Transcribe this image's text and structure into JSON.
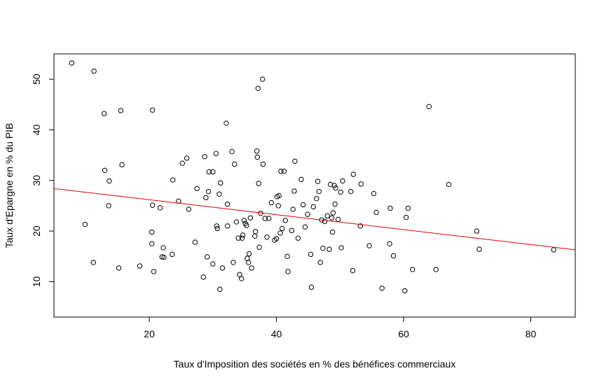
{
  "chart_data": {
    "type": "scatter",
    "xlabel": "Taux d'Imposition des sociétés en % des bénéfices commerciaux",
    "ylabel": "Taux d'Epargne en % du PIB",
    "xlim": [
      5,
      87
    ],
    "ylim": [
      3,
      55
    ],
    "x_ticks": [
      20,
      40,
      60,
      80
    ],
    "y_ticks": [
      10,
      20,
      30,
      40,
      50
    ],
    "x_tick_labels": [
      "20",
      "40",
      "60",
      "80"
    ],
    "y_tick_labels": [
      "10",
      "20",
      "30",
      "40",
      "50"
    ],
    "grid": false,
    "legend": "none",
    "point_color": "#000000",
    "line_color": "#e00000",
    "regression_line": {
      "x": [
        5,
        87
      ],
      "y": [
        28.4,
        16.3
      ]
    },
    "points": [
      [
        7.8,
        53.2
      ],
      [
        11.3,
        51.6
      ],
      [
        12.9,
        43.2
      ],
      [
        15.5,
        43.8
      ],
      [
        15.7,
        33.1
      ],
      [
        13.0,
        32.0
      ],
      [
        13.7,
        29.9
      ],
      [
        13.6,
        25.0
      ],
      [
        9.9,
        21.3
      ],
      [
        11.2,
        13.8
      ],
      [
        15.2,
        12.7
      ],
      [
        18.5,
        13.1
      ],
      [
        20.5,
        43.9
      ],
      [
        20.5,
        25.1
      ],
      [
        20.4,
        19.8
      ],
      [
        20.4,
        17.5
      ],
      [
        20.7,
        12.0
      ],
      [
        21.7,
        24.6
      ],
      [
        22.2,
        16.7
      ],
      [
        22.0,
        14.9
      ],
      [
        22.3,
        14.8
      ],
      [
        23.6,
        15.4
      ],
      [
        23.7,
        30.1
      ],
      [
        24.6,
        25.9
      ],
      [
        25.2,
        33.4
      ],
      [
        25.9,
        34.4
      ],
      [
        26.2,
        24.3
      ],
      [
        27.2,
        17.8
      ],
      [
        27.5,
        28.4
      ],
      [
        28.5,
        10.9
      ],
      [
        28.7,
        34.7
      ],
      [
        28.9,
        26.6
      ],
      [
        29.1,
        14.9
      ],
      [
        29.3,
        27.8
      ],
      [
        29.4,
        31.7
      ],
      [
        30.0,
        31.7
      ],
      [
        30.0,
        13.5
      ],
      [
        30.5,
        35.3
      ],
      [
        30.6,
        21.0
      ],
      [
        30.7,
        20.5
      ],
      [
        31.0,
        27.3
      ],
      [
        31.1,
        8.5
      ],
      [
        31.2,
        29.5
      ],
      [
        31.5,
        12.7
      ],
      [
        32.1,
        41.3
      ],
      [
        32.3,
        21.0
      ],
      [
        32.3,
        25.3
      ],
      [
        33.0,
        35.7
      ],
      [
        33.2,
        13.8
      ],
      [
        33.4,
        33.2
      ],
      [
        33.7,
        21.8
      ],
      [
        34.0,
        18.6
      ],
      [
        34.2,
        11.4
      ],
      [
        34.5,
        10.6
      ],
      [
        34.6,
        18.6
      ],
      [
        34.7,
        19.2
      ],
      [
        34.9,
        22.1
      ],
      [
        35.1,
        21.5
      ],
      [
        35.3,
        21.1
      ],
      [
        35.4,
        14.6
      ],
      [
        35.6,
        13.8
      ],
      [
        35.7,
        15.5
      ],
      [
        35.9,
        22.6
      ],
      [
        36.1,
        12.7
      ],
      [
        36.6,
        19.0
      ],
      [
        36.7,
        19.9
      ],
      [
        36.9,
        35.8
      ],
      [
        37.0,
        34.6
      ],
      [
        37.1,
        48.2
      ],
      [
        37.2,
        29.4
      ],
      [
        37.3,
        16.8
      ],
      [
        37.5,
        23.5
      ],
      [
        37.8,
        50.0
      ],
      [
        37.9,
        33.2
      ],
      [
        38.2,
        22.5
      ],
      [
        38.5,
        18.8
      ],
      [
        38.8,
        22.5
      ],
      [
        39.2,
        25.6
      ],
      [
        39.7,
        18.2
      ],
      [
        40.0,
        18.5
      ],
      [
        40.1,
        26.8
      ],
      [
        40.3,
        25.0
      ],
      [
        40.4,
        27.0
      ],
      [
        40.6,
        19.6
      ],
      [
        40.7,
        31.8
      ],
      [
        40.9,
        20.5
      ],
      [
        41.2,
        31.8
      ],
      [
        41.4,
        22.1
      ],
      [
        41.7,
        15.0
      ],
      [
        41.8,
        12.0
      ],
      [
        42.4,
        20.1
      ],
      [
        42.6,
        24.3
      ],
      [
        42.8,
        27.9
      ],
      [
        42.9,
        33.8
      ],
      [
        43.4,
        18.6
      ],
      [
        43.9,
        30.2
      ],
      [
        44.2,
        25.2
      ],
      [
        44.5,
        20.8
      ],
      [
        44.9,
        23.3
      ],
      [
        45.4,
        15.4
      ],
      [
        45.5,
        8.9
      ],
      [
        45.8,
        24.8
      ],
      [
        46.3,
        26.4
      ],
      [
        46.5,
        29.8
      ],
      [
        46.7,
        27.8
      ],
      [
        46.9,
        13.8
      ],
      [
        47.1,
        22.2
      ],
      [
        47.3,
        16.6
      ],
      [
        47.6,
        21.9
      ],
      [
        48.0,
        23.0
      ],
      [
        48.3,
        16.4
      ],
      [
        48.5,
        29.2
      ],
      [
        48.7,
        22.6
      ],
      [
        48.8,
        19.8
      ],
      [
        48.9,
        23.6
      ],
      [
        49.1,
        29.0
      ],
      [
        49.2,
        25.3
      ],
      [
        49.3,
        28.5
      ],
      [
        49.7,
        22.3
      ],
      [
        50.1,
        27.7
      ],
      [
        50.2,
        16.7
      ],
      [
        50.4,
        29.9
      ],
      [
        51.7,
        27.8
      ],
      [
        52.0,
        12.2
      ],
      [
        52.1,
        31.2
      ],
      [
        53.2,
        21.0
      ],
      [
        53.3,
        29.3
      ],
      [
        54.6,
        17.1
      ],
      [
        55.3,
        27.4
      ],
      [
        55.7,
        23.7
      ],
      [
        56.6,
        8.7
      ],
      [
        57.8,
        17.5
      ],
      [
        57.9,
        24.5
      ],
      [
        58.4,
        15.1
      ],
      [
        60.2,
        8.2
      ],
      [
        60.4,
        22.7
      ],
      [
        60.7,
        24.5
      ],
      [
        61.4,
        12.4
      ],
      [
        64.0,
        44.6
      ],
      [
        65.1,
        12.4
      ],
      [
        67.1,
        29.2
      ],
      [
        71.5,
        20.0
      ],
      [
        71.9,
        16.4
      ],
      [
        83.6,
        16.3
      ]
    ]
  }
}
